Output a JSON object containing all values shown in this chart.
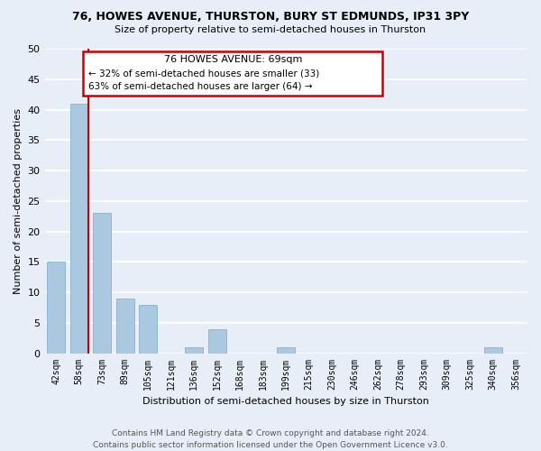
{
  "title_line1": "76, HOWES AVENUE, THURSTON, BURY ST EDMUNDS, IP31 3PY",
  "title_line2": "Size of property relative to semi-detached houses in Thurston",
  "xlabel": "Distribution of semi-detached houses by size in Thurston",
  "ylabel": "Number of semi-detached properties",
  "bin_labels": [
    "42sqm",
    "58sqm",
    "73sqm",
    "89sqm",
    "105sqm",
    "121sqm",
    "136sqm",
    "152sqm",
    "168sqm",
    "183sqm",
    "199sqm",
    "215sqm",
    "230sqm",
    "246sqm",
    "262sqm",
    "278sqm",
    "293sqm",
    "309sqm",
    "325sqm",
    "340sqm",
    "356sqm"
  ],
  "bar_heights": [
    15,
    41,
    23,
    9,
    8,
    0,
    1,
    4,
    0,
    0,
    1,
    0,
    0,
    0,
    0,
    0,
    0,
    0,
    0,
    1,
    0
  ],
  "bar_color": "#aac8e0",
  "marker_bin_index": 1,
  "marker_color": "#cc0000",
  "ylim": [
    0,
    50
  ],
  "yticks": [
    0,
    5,
    10,
    15,
    20,
    25,
    30,
    35,
    40,
    45,
    50
  ],
  "annotation_title": "76 HOWES AVENUE: 69sqm",
  "annotation_line1": "← 32% of semi-detached houses are smaller (33)",
  "annotation_line2": "63% of semi-detached houses are larger (64) →",
  "footer_line1": "Contains HM Land Registry data © Crown copyright and database right 2024.",
  "footer_line2": "Contains public sector information licensed under the Open Government Licence v3.0.",
  "bg_color": "#e8eef8",
  "grid_color": "#ffffff",
  "annotation_box_color": "#ffffff",
  "annotation_box_edge": "#cc0000",
  "title_fontsize": 9,
  "subtitle_fontsize": 8,
  "ylabel_fontsize": 8,
  "xlabel_fontsize": 8,
  "tick_fontsize": 7,
  "footer_fontsize": 6.5
}
